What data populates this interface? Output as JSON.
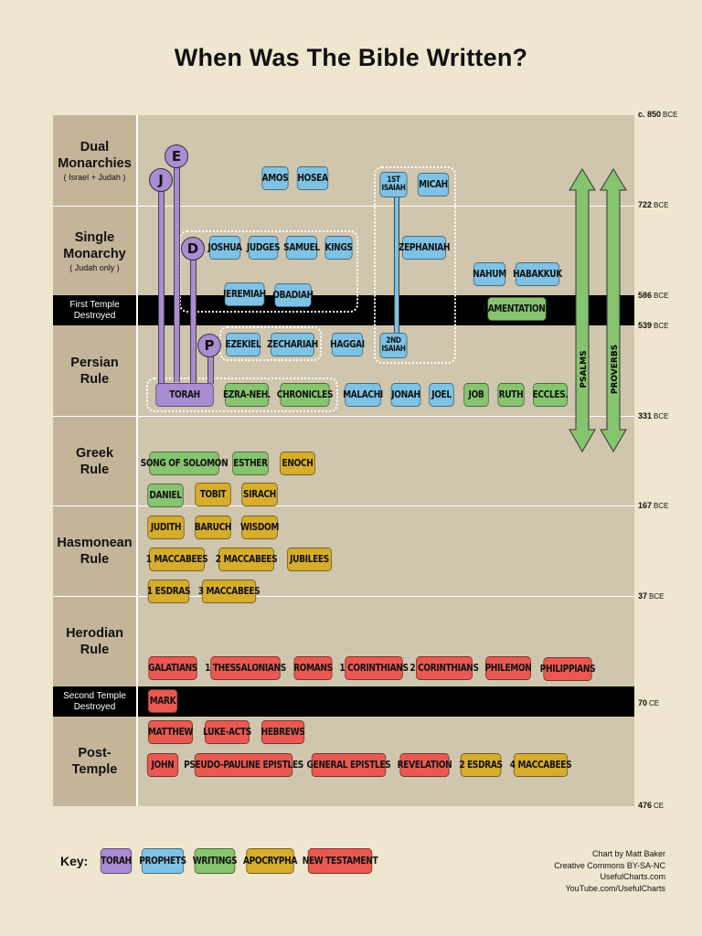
{
  "title": "When Was The Bible Written?",
  "periods": [
    {
      "name": "Dual\nMonarchies",
      "sub": "( Israel + Judah )"
    },
    {
      "name": "Single\nMonarchy",
      "sub": "( Judah only )"
    },
    {
      "name": "First Temple\nDestroyed",
      "sub": ""
    },
    {
      "name": "Persian\nRule",
      "sub": ""
    },
    {
      "name": "Greek\nRule",
      "sub": ""
    },
    {
      "name": "Hasmonean\nRule",
      "sub": ""
    },
    {
      "name": "Herodian\nRule",
      "sub": ""
    },
    {
      "name": "Second Temple\nDestroyed",
      "sub": ""
    },
    {
      "name": "Post-\nTemple",
      "sub": ""
    }
  ],
  "dates": [
    {
      "value": "c. 850",
      "era": "BCE"
    },
    {
      "value": "722",
      "era": "BCE"
    },
    {
      "value": "586",
      "era": "BCE"
    },
    {
      "value": "539",
      "era": "BCE"
    },
    {
      "value": "331",
      "era": "BCE"
    },
    {
      "value": "167",
      "era": "BCE"
    },
    {
      "value": "37",
      "era": "BCE"
    },
    {
      "value": "70",
      "era": "CE"
    },
    {
      "value": "476",
      "era": "CE"
    }
  ],
  "sources": [
    "J",
    "E",
    "D",
    "P"
  ],
  "books": {
    "amos": "AMOS",
    "hosea": "HOSEA",
    "isaiah1_a": "1ST",
    "isaiah1_b": "ISAIAH",
    "micah": "MICAH",
    "joshua": "JOSHUA",
    "judges": "JUDGES",
    "samuel": "SAMUEL",
    "kings": "KINGS",
    "zephaniah": "ZEPHANIAH",
    "nahum": "NAHUM",
    "habakkuk": "HABAKKUK",
    "jeremiah": "JEREMIAH",
    "obadiah": "OBADIAH",
    "lamentations": "LAMENTATIONS",
    "ezekiel": "EZEKIEL",
    "zechariah": "ZECHARIAH",
    "haggai": "HAGGAI",
    "isaiah2_a": "2ND",
    "isaiah2_b": "ISAIAH",
    "torah": "TORAH",
    "ezra_neh": "EZRA-NEH.",
    "chronicles": "CHRONICLES",
    "malachi": "MALACHI",
    "jonah": "JONAH",
    "joel": "JOEL",
    "job": "JOB",
    "ruth": "RUTH",
    "eccles": "ECCLES.",
    "psalms": "PSALMS",
    "proverbs": "PROVERBS",
    "song_of_solomon": "SONG OF SOLOMON",
    "esther": "ESTHER",
    "enoch": "ENOCH",
    "daniel": "DANIEL",
    "tobit": "TOBIT",
    "sirach": "SIRACH",
    "judith": "JUDITH",
    "baruch": "BARUCH",
    "wisdom": "WISDOM",
    "maccabees1": "1 MACCABEES",
    "maccabees2": "2 MACCABEES",
    "jubilees": "JUBILEES",
    "esdras1": "1 ESDRAS",
    "maccabees3": "3 MACCABEES",
    "galatians": "GALATIANS",
    "thessalonians1": "1 THESSALONIANS",
    "romans": "ROMANS",
    "corinthians1": "1 CORINTHIANS",
    "corinthians2": "2 CORINTHIANS",
    "philemon": "PHILEMON",
    "philippians": "PHILIPPIANS",
    "mark": "MARK",
    "matthew": "MATTHEW",
    "luke_acts": "LUKE-ACTS",
    "hebrews": "HEBREWS",
    "john": "JOHN",
    "pseudo_pauline": "PSEUDO-PAULINE EPISTLES",
    "general_epistles": "GENERAL EPISTLES",
    "revelation": "REVELATION",
    "esdras2": "2 ESDRAS",
    "maccabees4": "4 MACCABEES"
  },
  "key": {
    "label": "Key:",
    "items": [
      {
        "name": "TORAH",
        "color": "#a98cd2"
      },
      {
        "name": "PROPHETS",
        "color": "#7ec3e6"
      },
      {
        "name": "WRITINGS",
        "color": "#86c470"
      },
      {
        "name": "APOCRYPHA",
        "color": "#d6ad2e"
      },
      {
        "name": "NEW TESTAMENT",
        "color": "#ea5951"
      }
    ]
  },
  "credits": [
    "Chart by Matt Baker",
    "Creative Commons BY-SA-NC",
    "UsefulCharts.com",
    "YouTube.com/UsefulCharts"
  ]
}
